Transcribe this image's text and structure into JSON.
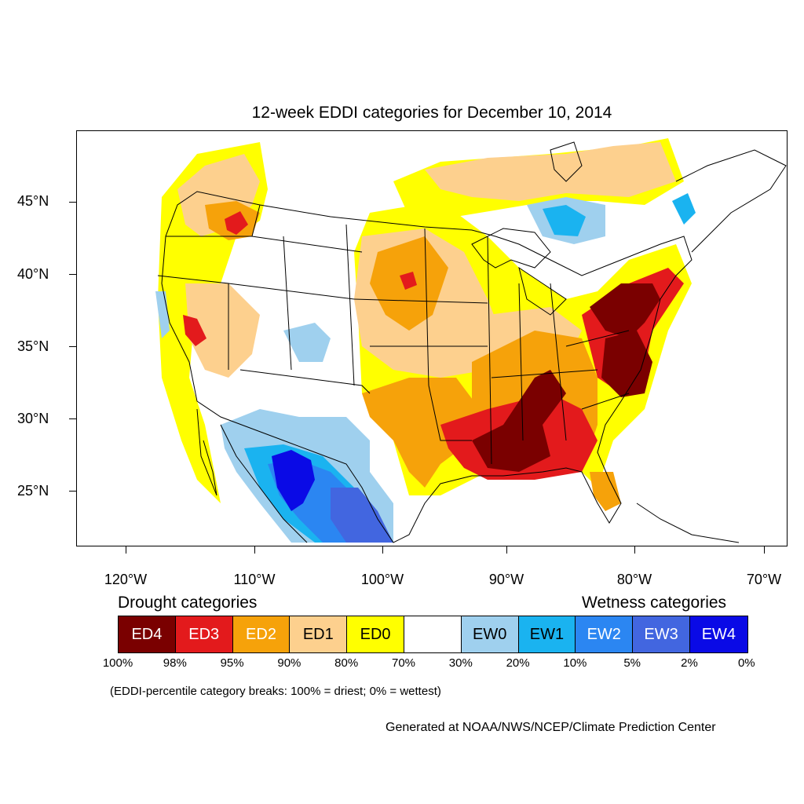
{
  "title": "12-week EDDI categories for December 10, 2014",
  "map": {
    "lat_labels": [
      "45°N",
      "40°N",
      "35°N",
      "30°N",
      "25°N"
    ],
    "lon_labels": [
      "120°W",
      "110°W",
      "100°W",
      "90°W",
      "80°W",
      "70°W"
    ],
    "colors": {
      "ED4": "#7a0000",
      "ED3": "#e31a1c",
      "ED2": "#f6a20a",
      "ED1": "#fdd08e",
      "ED0": "#ffff00",
      "EW0": "#9fd0ee",
      "EW1": "#1ab3f0",
      "EW2": "#2b86f2",
      "EW3": "#4266e0",
      "EW4": "#0a0ae6"
    }
  },
  "legend": {
    "drought_heading": "Drought categories",
    "wetness_heading": "Wetness categories",
    "categories": [
      {
        "label": "ED4",
        "color": "#7a0000",
        "text_color": "#ffffff"
      },
      {
        "label": "ED3",
        "color": "#e31a1c",
        "text_color": "#ffffff"
      },
      {
        "label": "ED2",
        "color": "#f6a20a",
        "text_color": "#ffffff"
      },
      {
        "label": "ED1",
        "color": "#fdd08e",
        "text_color": "#000000"
      },
      {
        "label": "ED0",
        "color": "#ffff00",
        "text_color": "#000000"
      },
      {
        "label": "",
        "color": "#ffffff",
        "text_color": "#000000"
      },
      {
        "label": "EW0",
        "color": "#9fd0ee",
        "text_color": "#000000"
      },
      {
        "label": "EW1",
        "color": "#1ab3f0",
        "text_color": "#000000"
      },
      {
        "label": "EW2",
        "color": "#2b86f2",
        "text_color": "#ffffff"
      },
      {
        "label": "EW3",
        "color": "#4266e0",
        "text_color": "#ffffff"
      },
      {
        "label": "EW4",
        "color": "#0a0ae6",
        "text_color": "#ffffff"
      }
    ],
    "breaks": [
      "100%",
      "98%",
      "95%",
      "90%",
      "80%",
      "70%",
      "30%",
      "20%",
      "10%",
      "5%",
      "2%",
      "0%"
    ]
  },
  "note": "(EDDI-percentile category breaks: 100% = driest; 0% = wettest)",
  "credit": "Generated at NOAA/NWS/NCEP/Climate Prediction Center"
}
